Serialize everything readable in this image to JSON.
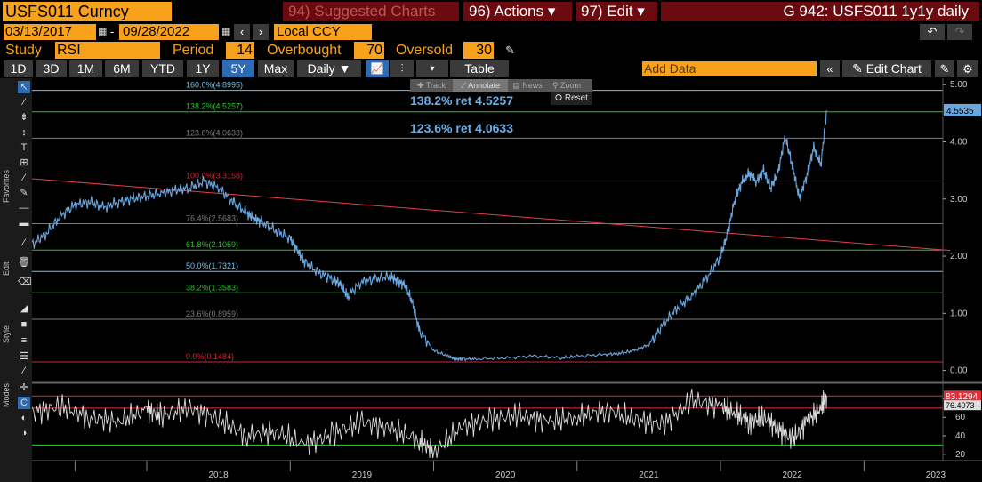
{
  "header": {
    "ticker": "USFS011 Curncy",
    "suggested": "94) Suggested Charts",
    "actions": "96) Actions ▾",
    "edit": "97) Edit ▾",
    "chart_title": "G 942: USFS011 1y1y daily"
  },
  "range": {
    "start": "03/13/2017",
    "end": "09/28/2022",
    "currency": "Local CCY"
  },
  "study": {
    "label": "Study",
    "name": "RSI",
    "period_label": "Period",
    "period": "14",
    "overbought_label": "Overbought",
    "overbought": "70",
    "oversold_label": "Oversold",
    "oversold": "30"
  },
  "periods": [
    "1D",
    "3D",
    "1M",
    "6M",
    "YTD",
    "1Y",
    "5Y",
    "Max"
  ],
  "selected_period": "5Y",
  "frequency": "Daily ▼",
  "table_label": "Table",
  "add_data_placeholder": "Add Data",
  "edit_chart_label": "Edit Chart",
  "overlay": {
    "track": "Track",
    "annotate": "Annotate",
    "news": "News",
    "zoom": "Zoom",
    "reset": "Reset"
  },
  "sidebar": {
    "favorites": "Favorites",
    "edit": "Edit",
    "style": "Style",
    "modes": "Modes"
  },
  "chart_data": {
    "type": "line",
    "x_labels": [
      "2018",
      "2019",
      "2020",
      "2021",
      "2022",
      "2023"
    ],
    "y_ticks": [
      "5.00",
      "4.00",
      "3.00",
      "2.00",
      "1.00",
      "0.00"
    ],
    "ylim": [
      -0.1,
      5.05
    ],
    "last_value_label": "4.5535",
    "last_value": 4.5535,
    "fib_levels": [
      {
        "label": "160.0%(4.8995)",
        "value": 4.8995,
        "color": "#7fd6ff"
      },
      {
        "label": "138.2%(4.5257)",
        "value": 4.5257,
        "color": "#33d633"
      },
      {
        "label": "123.6%(4.0633)",
        "value": 4.0633,
        "color": "#8a8a8a"
      },
      {
        "label": "100.0%(3.3158)",
        "value": 3.3158,
        "color": "#e0303a"
      },
      {
        "label": "76.4%(2.5683)",
        "value": 2.5683,
        "color": "#8a8a8a"
      },
      {
        "label": "61.8%(2.1059)",
        "value": 2.1059,
        "color": "#33d633"
      },
      {
        "label": "50.0%(1.7321)",
        "value": 1.7321,
        "color": "#7fd6ff"
      },
      {
        "label": "38.2%(1.3583)",
        "value": 1.3583,
        "color": "#33d633"
      },
      {
        "label": "23.6%(0.8959)",
        "value": 0.8959,
        "color": "#8a8a8a"
      },
      {
        "label": "0.0%(0.1484)",
        "value": 0.1484,
        "color": "#e0303a"
      }
    ],
    "annotations": [
      "138.2% ret 4.5257",
      "123.6% ret 4.0633"
    ],
    "trendline": {
      "x": [
        2016.2,
        2023.6
      ],
      "y": [
        3.55,
        2.1
      ]
    },
    "series": [
      {
        "x": [
          2017.2,
          2017.3,
          2017.4,
          2017.5,
          2017.6,
          2017.7,
          2017.8,
          2017.9,
          2018.0,
          2018.1,
          2018.2,
          2018.3,
          2018.4,
          2018.5,
          2018.6,
          2018.7,
          2018.75,
          2018.8,
          2018.9,
          2019.0,
          2019.05,
          2019.1,
          2019.2,
          2019.3,
          2019.35,
          2019.4,
          2019.5,
          2019.6,
          2019.7,
          2019.75,
          2019.8,
          2019.85,
          2019.9,
          2020.0,
          2020.1,
          2020.15,
          2020.2,
          2020.3,
          2020.5,
          2020.7,
          2020.9,
          2021.0,
          2021.2,
          2021.3,
          2021.4,
          2021.5,
          2021.6,
          2021.7,
          2021.8,
          2021.9,
          2022.0,
          2022.05,
          2022.1,
          2022.15,
          2022.2,
          2022.25,
          2022.3,
          2022.35,
          2022.4,
          2022.45,
          2022.5,
          2022.55,
          2022.6,
          2022.65,
          2022.7,
          2022.74
        ],
        "values": [
          2.2,
          2.4,
          2.7,
          2.9,
          2.95,
          2.85,
          2.95,
          3.0,
          3.05,
          3.1,
          3.15,
          3.2,
          3.3,
          3.2,
          2.95,
          2.75,
          2.65,
          2.6,
          2.45,
          2.3,
          2.1,
          1.9,
          1.7,
          1.6,
          1.5,
          1.3,
          1.55,
          1.6,
          1.65,
          1.55,
          1.5,
          1.2,
          0.7,
          0.35,
          0.25,
          0.2,
          0.2,
          0.2,
          0.22,
          0.25,
          0.22,
          0.25,
          0.28,
          0.3,
          0.35,
          0.45,
          0.8,
          1.1,
          1.3,
          1.6,
          2.0,
          2.4,
          3.0,
          3.3,
          3.45,
          3.3,
          3.5,
          3.2,
          3.45,
          4.1,
          3.6,
          3.0,
          3.4,
          3.9,
          3.6,
          4.55
        ]
      },
      {
        "name": "RSI",
        "panel": "lower",
        "ylim": [
          15,
          92
        ],
        "y_ticks": [
          "80",
          "60",
          "40",
          "20"
        ],
        "last_value_label": "83.1294",
        "second_label": "76.4073",
        "thresholds": [
          {
            "value": 83.1294,
            "color": "#e0303a"
          },
          {
            "value": 70,
            "color": "#e0303a"
          },
          {
            "value": 30,
            "color": "#33d633"
          }
        ],
        "x": [
          2017.2,
          2017.4,
          2017.6,
          2017.8,
          2018.0,
          2018.1,
          2018.3,
          2018.5,
          2018.7,
          2018.9,
          2019.1,
          2019.3,
          2019.5,
          2019.7,
          2019.9,
          2020.0,
          2020.2,
          2020.4,
          2020.6,
          2020.8,
          2021.0,
          2021.2,
          2021.4,
          2021.6,
          2021.8,
          2022.0,
          2022.1,
          2022.2,
          2022.3,
          2022.4,
          2022.5,
          2022.6,
          2022.7,
          2022.74
        ],
        "values": [
          65,
          72,
          60,
          55,
          68,
          62,
          70,
          58,
          40,
          45,
          30,
          42,
          55,
          48,
          35,
          22,
          50,
          58,
          62,
          55,
          60,
          68,
          58,
          52,
          78,
          72,
          65,
          55,
          60,
          48,
          35,
          55,
          70,
          83
        ]
      }
    ]
  }
}
